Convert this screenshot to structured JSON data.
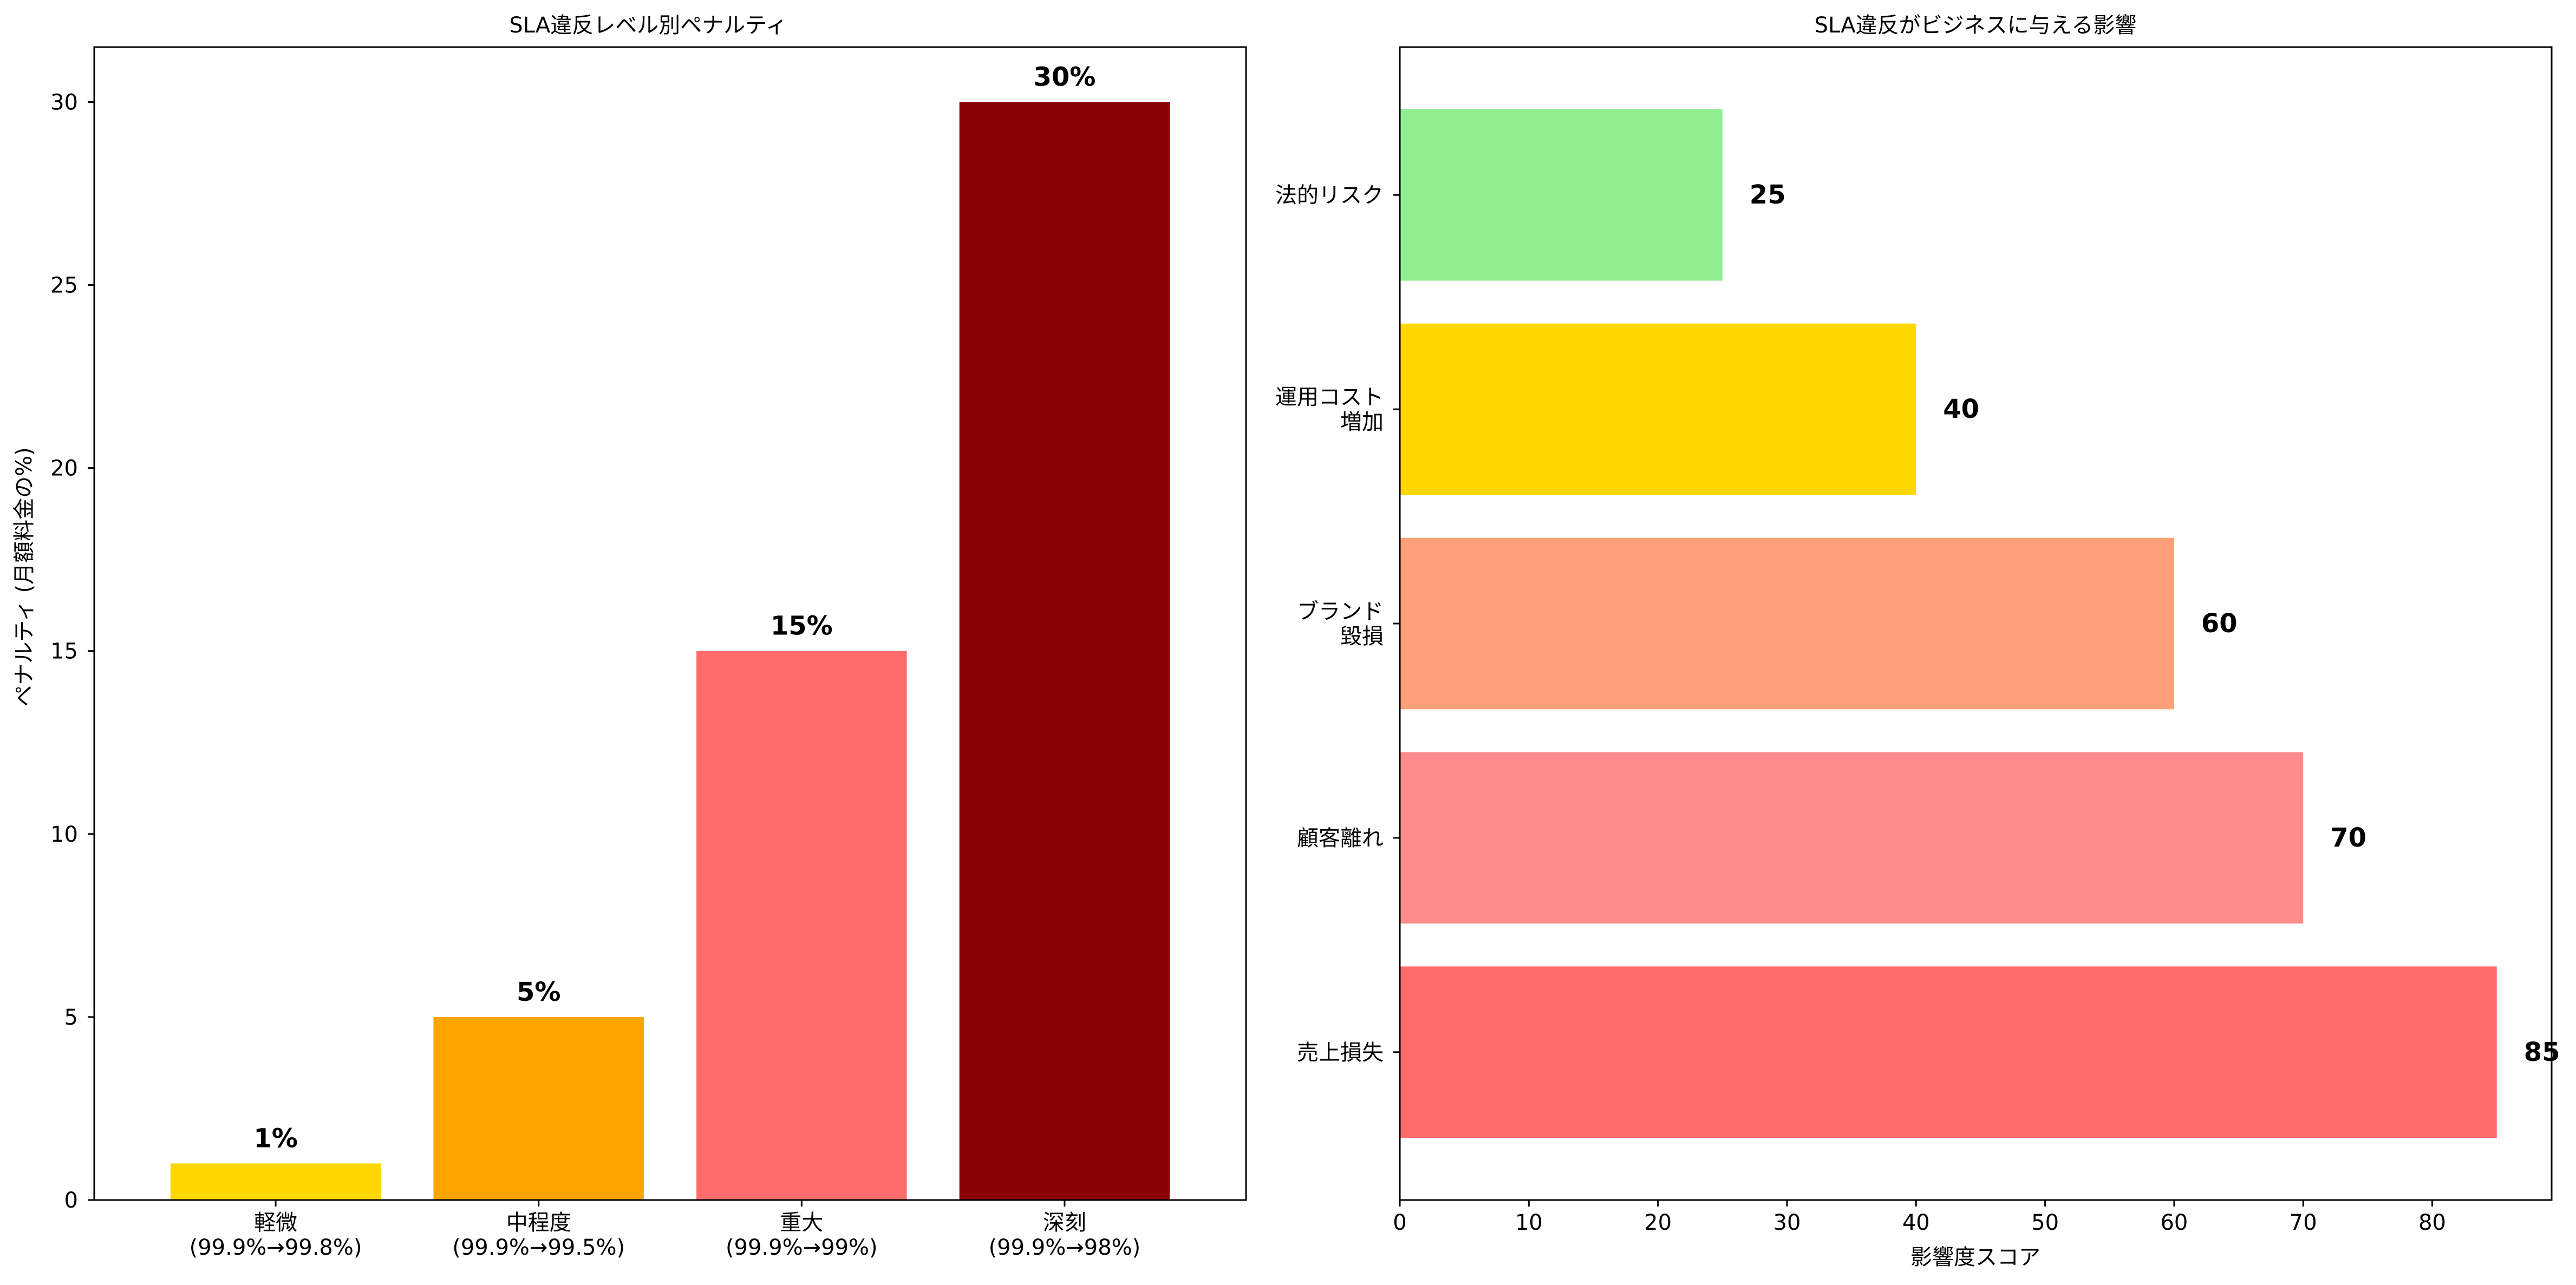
{
  "chart_data": [
    {
      "type": "bar",
      "title": "SLA違反レベル別ペナルティ",
      "xlabel": "",
      "ylabel": "ペナルティ (月額料金の%)",
      "categories": [
        [
          "軽微",
          "(99.9%→99.8%)"
        ],
        [
          "中程度",
          "(99.9%→99.5%)"
        ],
        [
          "重大",
          "(99.9%→99%)"
        ],
        [
          "深刻",
          "(99.9%→98%)"
        ]
      ],
      "values": [
        1,
        5,
        15,
        30
      ],
      "value_labels": [
        "1%",
        "5%",
        "15%",
        "30%"
      ],
      "colors": [
        "#FFD700",
        "#FFA500",
        "#FF6B6B",
        "#8B0000"
      ],
      "ylim": [
        0,
        31.5
      ],
      "yticks": [
        0,
        5,
        10,
        15,
        20,
        25,
        30
      ],
      "grid": false
    },
    {
      "type": "bar",
      "orientation": "horizontal",
      "title": "SLA違反がビジネスに与える影響",
      "xlabel": "影響度スコア",
      "ylabel": "",
      "categories": [
        [
          "売上損失"
        ],
        [
          "顧客離れ"
        ],
        [
          "ブランド",
          "毀損"
        ],
        [
          "運用コスト",
          "増加"
        ],
        [
          "法的リスク"
        ]
      ],
      "values": [
        85,
        70,
        60,
        40,
        25
      ],
      "value_labels": [
        "85",
        "70",
        "60",
        "40",
        "25"
      ],
      "colors": [
        "#FF6B6B",
        "#FF8C8C",
        "#FFA07A",
        "#FFD700",
        "#90EE90"
      ],
      "xlim": [
        0,
        89.25
      ],
      "xticks": [
        0,
        10,
        20,
        30,
        40,
        50,
        60,
        70,
        80
      ],
      "grid": false
    }
  ]
}
